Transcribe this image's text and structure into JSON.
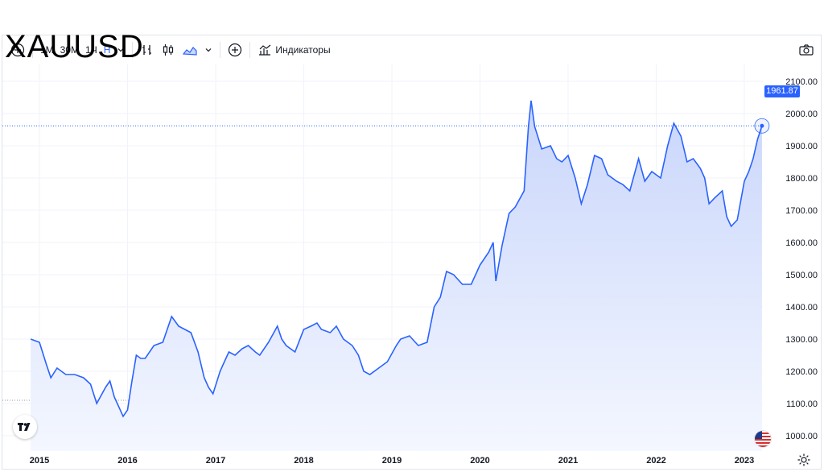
{
  "toolbar": {
    "intervals": [
      "1М",
      "30М",
      "1Ч",
      "Н"
    ],
    "active_interval": "Н",
    "indicators_label": "Индикаторы"
  },
  "symbol": "XAUUSD",
  "last_price_label": "1961.87",
  "icons": [
    "plus-circle-icon",
    "bar-chart-icon",
    "candle-chart-icon",
    "area-chart-icon",
    "chevron-down-icon",
    "indicators-icon",
    "camera-icon",
    "tradingview-logo-icon",
    "us-flag-icon",
    "settings-gear-icon"
  ],
  "colors": {
    "line": "#2962ff",
    "fill_top": "#c9d6fb",
    "fill_bottom": "#f4f7ff",
    "price_tag": "#2962ff"
  },
  "chart_data": {
    "type": "area",
    "title": "XAUUSD",
    "xlabel": "",
    "ylabel": "",
    "ylim": [
      950,
      2150
    ],
    "y_ticks": [
      "1000.00",
      "1100.00",
      "1200.00",
      "1300.00",
      "1400.00",
      "1500.00",
      "1600.00",
      "1700.00",
      "1800.00",
      "1900.00",
      "2000.00",
      "2100.00"
    ],
    "x_ticks": [
      "2015",
      "2016",
      "2017",
      "2018",
      "2019",
      "2020",
      "2021",
      "2022",
      "2023"
    ],
    "last_value": 1961.87,
    "reference_line": 1110,
    "x": [
      2014.9,
      2015.0,
      2015.08,
      2015.13,
      2015.2,
      2015.3,
      2015.4,
      2015.5,
      2015.58,
      2015.65,
      2015.75,
      2015.8,
      2015.85,
      2015.9,
      2015.95,
      2016.0,
      2016.05,
      2016.1,
      2016.15,
      2016.2,
      2016.3,
      2016.4,
      2016.5,
      2016.58,
      2016.65,
      2016.72,
      2016.8,
      2016.87,
      2016.92,
      2016.97,
      2017.05,
      2017.1,
      2017.15,
      2017.22,
      2017.3,
      2017.37,
      2017.45,
      2017.5,
      2017.6,
      2017.7,
      2017.75,
      2017.8,
      2017.9,
      2018.0,
      2018.08,
      2018.15,
      2018.2,
      2018.3,
      2018.37,
      2018.45,
      2018.55,
      2018.62,
      2018.68,
      2018.75,
      2018.85,
      2018.95,
      2019.05,
      2019.1,
      2019.2,
      2019.3,
      2019.4,
      2019.48,
      2019.55,
      2019.62,
      2019.7,
      2019.8,
      2019.9,
      2020.0,
      2020.1,
      2020.15,
      2020.18,
      2020.25,
      2020.33,
      2020.4,
      2020.5,
      2020.55,
      2020.58,
      2020.62,
      2020.7,
      2020.8,
      2020.87,
      2020.93,
      2021.0,
      2021.08,
      2021.15,
      2021.22,
      2021.3,
      2021.38,
      2021.45,
      2021.55,
      2021.62,
      2021.7,
      2021.8,
      2021.87,
      2021.95,
      2022.05,
      2022.13,
      2022.2,
      2022.28,
      2022.35,
      2022.42,
      2022.5,
      2022.55,
      2022.6,
      2022.67,
      2022.75,
      2022.8,
      2022.85,
      2022.92,
      2023.0,
      2023.05,
      2023.1,
      2023.15,
      2023.2
    ],
    "values": [
      1300,
      1290,
      1220,
      1180,
      1210,
      1190,
      1190,
      1180,
      1160,
      1100,
      1150,
      1170,
      1120,
      1090,
      1060,
      1080,
      1170,
      1250,
      1240,
      1240,
      1280,
      1290,
      1370,
      1340,
      1330,
      1320,
      1260,
      1180,
      1150,
      1130,
      1200,
      1230,
      1260,
      1250,
      1270,
      1280,
      1260,
      1250,
      1290,
      1340,
      1300,
      1280,
      1260,
      1330,
      1340,
      1350,
      1330,
      1320,
      1340,
      1300,
      1280,
      1250,
      1200,
      1190,
      1210,
      1230,
      1280,
      1300,
      1310,
      1280,
      1290,
      1400,
      1430,
      1510,
      1500,
      1470,
      1470,
      1530,
      1570,
      1600,
      1480,
      1590,
      1690,
      1710,
      1760,
      1960,
      2040,
      1960,
      1890,
      1900,
      1860,
      1850,
      1870,
      1800,
      1720,
      1780,
      1870,
      1860,
      1810,
      1790,
      1780,
      1760,
      1860,
      1790,
      1820,
      1800,
      1900,
      1970,
      1930,
      1850,
      1860,
      1830,
      1800,
      1720,
      1740,
      1760,
      1680,
      1650,
      1670,
      1790,
      1820,
      1860,
      1920,
      1961.87
    ]
  }
}
